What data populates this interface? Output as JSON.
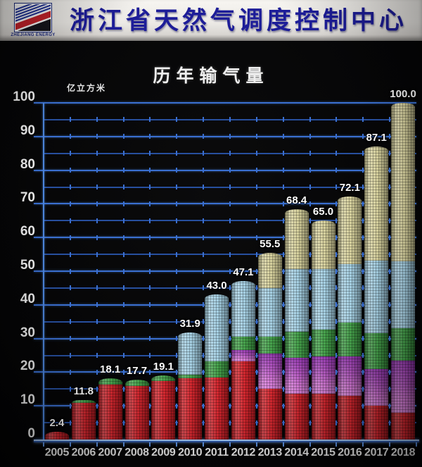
{
  "header": {
    "org_title": "浙江省天然气调度控制中心",
    "logo": {
      "company_en": "ZHEJIANG ENERGY",
      "company_cn": "浙江天然气"
    }
  },
  "chart_data": {
    "type": "bar",
    "stacked": true,
    "title": "历年输气量",
    "unit_label": "亿立方米",
    "categories": [
      "2005",
      "2006",
      "2007",
      "2008",
      "2009",
      "2010",
      "2011",
      "2012",
      "2013",
      "2014",
      "2015",
      "2016",
      "2017",
      "2018"
    ],
    "totals": [
      2.4,
      11.8,
      18.1,
      17.7,
      19.1,
      31.9,
      43.0,
      47.1,
      55.5,
      68.4,
      65.0,
      72.1,
      87.1,
      100.0
    ],
    "total_labels": [
      "2.4",
      "11.8",
      "18.1",
      "17.7",
      "19.1",
      "31.9",
      "43.0",
      "47.1",
      "55.5",
      "68.4",
      "65.0",
      "72.1",
      "87.1",
      "100.0"
    ],
    "series": [
      {
        "name": "red-segment",
        "color": "#d21e26",
        "values": [
          2.4,
          10.8,
          16.4,
          16.0,
          17.4,
          18.2,
          18.5,
          23.3,
          15.0,
          13.6,
          13.6,
          13.0,
          10.0,
          8.0
        ]
      },
      {
        "name": "violet-segment",
        "color": "#c565cb",
        "values": [
          0,
          0,
          0,
          0,
          0,
          0,
          0,
          3.2,
          10.5,
          10.7,
          11.0,
          11.7,
          11.0,
          15.5
        ]
      },
      {
        "name": "green-segment",
        "color": "#3f9f45",
        "values": [
          0,
          1.0,
          1.7,
          1.7,
          1.7,
          1.0,
          4.8,
          4.1,
          5.0,
          7.7,
          8.0,
          10.0,
          10.5,
          9.5
        ]
      },
      {
        "name": "lightblue-segment",
        "color": "#a2cee2",
        "values": [
          0,
          0,
          0,
          0,
          0,
          12.7,
          19.7,
          16.5,
          14.5,
          18.7,
          18.0,
          17.4,
          21.6,
          20.0
        ]
      },
      {
        "name": "khaki-segment",
        "color": "#d5cf9a",
        "values": [
          0,
          0,
          0,
          0,
          0,
          0,
          0,
          0,
          10.5,
          17.7,
          14.4,
          20.0,
          34.0,
          47.0
        ]
      }
    ],
    "ylim": [
      0,
      100
    ],
    "y_major_tick_step": 10,
    "y_minor_tick_step": 5,
    "grid": "horizontal, blue, every 5 units",
    "legend": "none",
    "colors": {
      "grid_minor": "#274f9e",
      "grid_major": "#3a6fd0",
      "axis": "#5d93e2",
      "label_text": "#f2f2f2",
      "header_text": "#1d1d98"
    }
  }
}
